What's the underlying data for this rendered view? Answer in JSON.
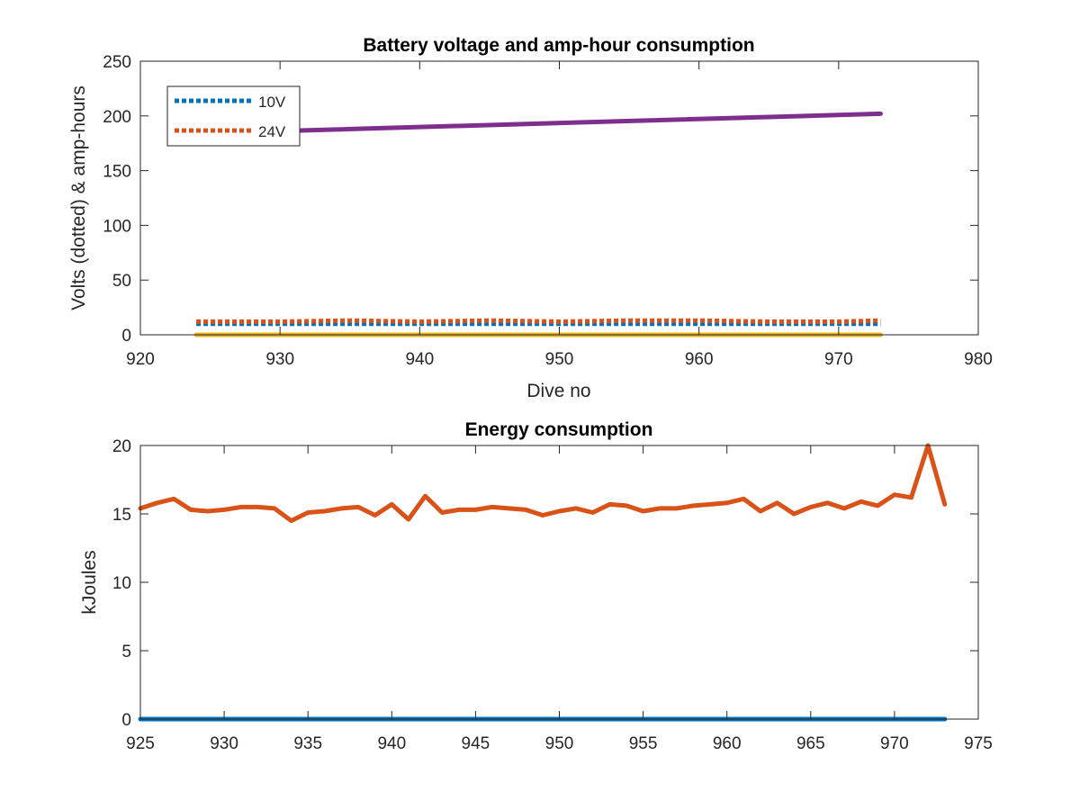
{
  "chart_data": [
    {
      "type": "line",
      "title": "Battery voltage and amp-hour consumption",
      "xlabel": "Dive no",
      "ylabel": "Volts (dotted) & amp-hours",
      "xlim": [
        920,
        980
      ],
      "ylim": [
        0,
        250
      ],
      "xticks": [
        920,
        930,
        940,
        950,
        960,
        970,
        980
      ],
      "yticks": [
        0,
        50,
        100,
        150,
        200,
        250
      ],
      "grid": false,
      "legend_placement": "top-left",
      "series": [
        {
          "name": "10V",
          "style": "dotted",
          "color": "#0072BD",
          "x": [
            924,
            973
          ],
          "values": [
            10,
            10
          ]
        },
        {
          "name": "24V",
          "style": "dotted",
          "color": "#D95319",
          "x": [
            924,
            930,
            935,
            940,
            945,
            950,
            955,
            960,
            965,
            970,
            973
          ],
          "values": [
            12,
            12,
            13,
            12,
            13,
            12,
            13,
            13,
            12,
            12,
            13
          ]
        },
        {
          "style": "solid",
          "color": "#EDB120",
          "x": [
            924,
            973
          ],
          "values": [
            0,
            0
          ]
        },
        {
          "style": "solid",
          "color": "#7E2F8E",
          "x": [
            924,
            973
          ],
          "values": [
            184,
            202
          ]
        }
      ]
    },
    {
      "type": "line",
      "title": "Energy consumption",
      "xlabel": "",
      "ylabel": "kJoules",
      "xlim": [
        925,
        975
      ],
      "ylim": [
        0,
        20
      ],
      "xticks": [
        925,
        930,
        935,
        940,
        945,
        950,
        955,
        960,
        965,
        970,
        975
      ],
      "yticks": [
        0,
        5,
        10,
        15,
        20
      ],
      "grid": false,
      "series": [
        {
          "style": "solid",
          "color": "#0072BD",
          "x": [
            925,
            973
          ],
          "values": [
            0,
            0
          ]
        },
        {
          "style": "solid",
          "color": "#D95319",
          "x": [
            925,
            926,
            927,
            928,
            929,
            930,
            931,
            932,
            933,
            934,
            935,
            936,
            937,
            938,
            939,
            940,
            941,
            942,
            943,
            944,
            945,
            946,
            947,
            948,
            949,
            950,
            951,
            952,
            953,
            954,
            955,
            956,
            957,
            958,
            959,
            960,
            961,
            962,
            963,
            964,
            965,
            966,
            967,
            968,
            969,
            970,
            971,
            972,
            973
          ],
          "values": [
            15.4,
            15.8,
            16.1,
            15.3,
            15.2,
            15.3,
            15.5,
            15.5,
            15.4,
            14.5,
            15.1,
            15.2,
            15.4,
            15.5,
            14.9,
            15.7,
            14.6,
            16.3,
            15.1,
            15.3,
            15.3,
            15.5,
            15.4,
            15.3,
            14.9,
            15.2,
            15.4,
            15.1,
            15.7,
            15.6,
            15.2,
            15.4,
            15.4,
            15.6,
            15.7,
            15.8,
            16.1,
            15.2,
            15.8,
            15.0,
            15.5,
            15.8,
            15.4,
            15.9,
            15.6,
            16.4,
            16.2,
            20.0,
            15.7
          ]
        }
      ]
    }
  ]
}
